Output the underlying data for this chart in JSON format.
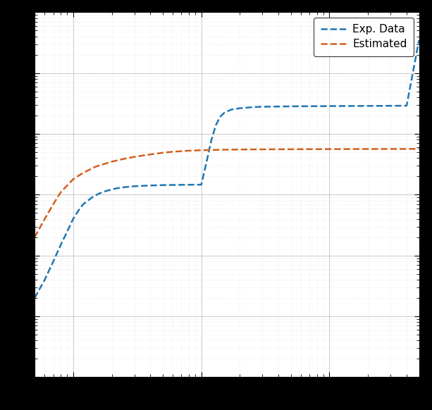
{
  "title": "",
  "xlabel": "",
  "ylabel": "",
  "xlim": [
    0.5,
    500
  ],
  "ylim": [
    1e-09,
    0.001
  ],
  "legend": [
    "Exp. Data",
    "Estimated"
  ],
  "line_colors": [
    "#1f77b4",
    "#d45f1e"
  ],
  "line_style": "--",
  "line_width": 1.8,
  "background_color": "#ffffff",
  "grid_major_color": "#b0b0b0",
  "grid_minor_color": "#d8d8d8",
  "exp_x": [
    0.5,
    0.6,
    0.7,
    0.8,
    0.9,
    1.0,
    1.1,
    1.2,
    1.4,
    1.6,
    1.8,
    2.0,
    2.2,
    2.5,
    3.0,
    4.0,
    5.0,
    6.0,
    7.0,
    8.0,
    9.0,
    10.0,
    11.0,
    12.0,
    13.0,
    14.0,
    15.0,
    17.0,
    20.0,
    25.0,
    30.0,
    40.0,
    50.0,
    60.0,
    80.0,
    100.0,
    150.0,
    200.0,
    300.0,
    400.0,
    500.0
  ],
  "exp_y": [
    2e-08,
    4e-08,
    8e-08,
    1.5e-07,
    2.5e-07,
    4e-07,
    5.5e-07,
    7e-07,
    9e-07,
    1.05e-06,
    1.15e-06,
    1.22e-06,
    1.28e-06,
    1.33e-06,
    1.38e-06,
    1.42e-06,
    1.44e-06,
    1.45e-06,
    1.455e-06,
    1.46e-06,
    1.462e-06,
    1.465e-06,
    3.5e-06,
    8e-06,
    1.4e-05,
    1.9e-05,
    2.2e-05,
    2.5e-05,
    2.65e-05,
    2.75e-05,
    2.8e-05,
    2.82e-05,
    2.84e-05,
    2.85e-05,
    2.86e-05,
    2.87e-05,
    2.88e-05,
    2.89e-05,
    2.9e-05,
    2.91e-05,
    0.00035
  ],
  "est_x": [
    0.5,
    0.6,
    0.7,
    0.8,
    1.0,
    1.2,
    1.5,
    2.0,
    2.5,
    3.0,
    4.0,
    5.0,
    6.0,
    7.0,
    8.0,
    10.0,
    12.0,
    15.0,
    20.0,
    30.0,
    50.0,
    80.0,
    100.0,
    150.0,
    200.0,
    300.0,
    400.0,
    500.0
  ],
  "est_y": [
    2e-07,
    4e-07,
    7e-07,
    1.1e-06,
    1.8e-06,
    2.3e-06,
    2.9e-06,
    3.5e-06,
    3.9e-06,
    4.2e-06,
    4.6e-06,
    4.9e-06,
    5.1e-06,
    5.2e-06,
    5.3e-06,
    5.4e-06,
    5.45e-06,
    5.5e-06,
    5.55e-06,
    5.58e-06,
    5.6e-06,
    5.62e-06,
    5.63e-06,
    5.64e-06,
    5.65e-06,
    5.66e-06,
    5.67e-06,
    5.68e-06
  ]
}
